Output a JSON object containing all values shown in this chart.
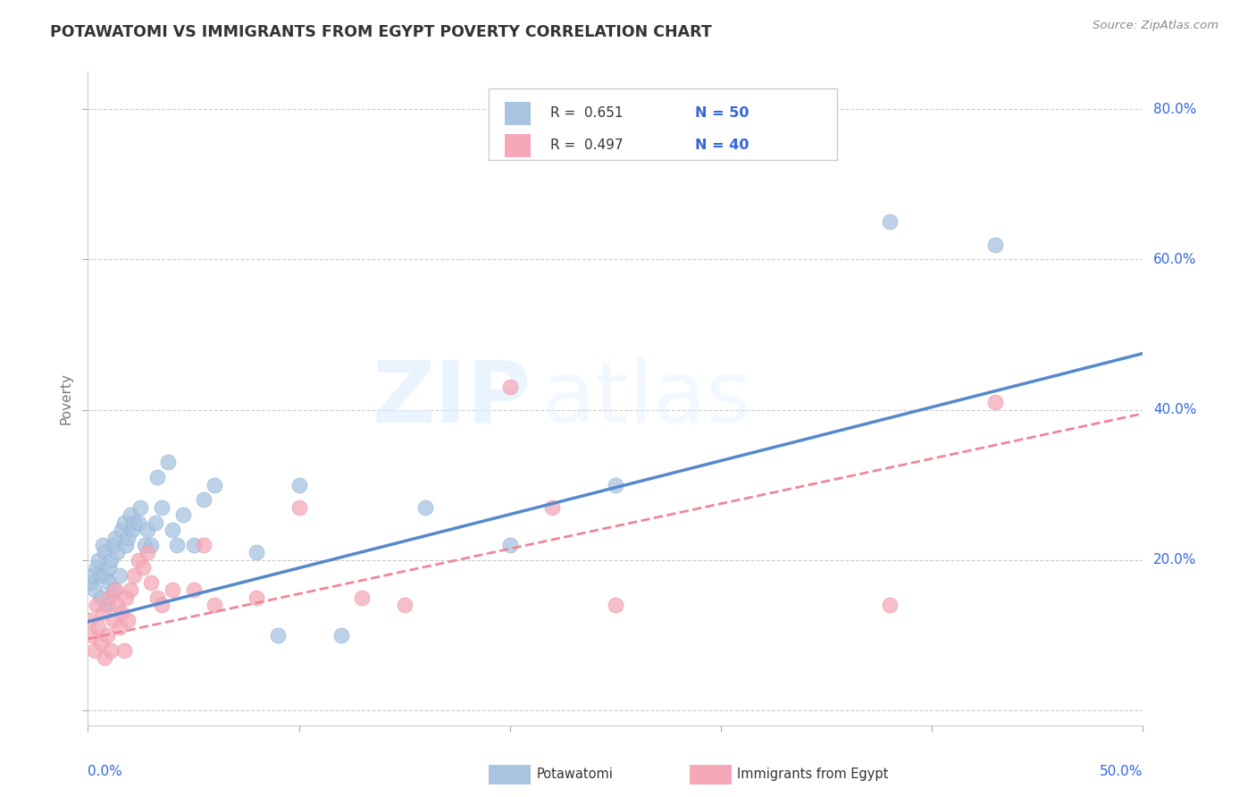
{
  "title": "POTAWATOMI VS IMMIGRANTS FROM EGYPT POVERTY CORRELATION CHART",
  "source": "Source: ZipAtlas.com",
  "ylabel": "Poverty",
  "watermark_zip": "ZIP",
  "watermark_atlas": "atlas",
  "xlim": [
    0.0,
    0.5
  ],
  "ylim": [
    -0.02,
    0.85
  ],
  "yticks": [
    0.0,
    0.2,
    0.4,
    0.6,
    0.8
  ],
  "ytick_labels": [
    "",
    "20.0%",
    "40.0%",
    "60.0%",
    "80.0%"
  ],
  "xtick_positions": [
    0.0,
    0.1,
    0.2,
    0.3,
    0.4,
    0.5
  ],
  "series1_label": "Potawatomi",
  "series2_label": "Immigrants from Egypt",
  "series1_R": 0.651,
  "series1_N": 50,
  "series2_R": 0.497,
  "series2_N": 40,
  "series1_color": "#A8C4E0",
  "series2_color": "#F4A8B8",
  "series1_line_color": "#5588CC",
  "series2_line_color": "#EE8899",
  "legend_color": "#3366DD",
  "title_color": "#333333",
  "grid_color": "#CCCCCC",
  "background_color": "#FFFFFF",
  "series1_x": [
    0.001,
    0.002,
    0.003,
    0.004,
    0.005,
    0.006,
    0.006,
    0.007,
    0.008,
    0.008,
    0.009,
    0.01,
    0.01,
    0.011,
    0.012,
    0.012,
    0.013,
    0.014,
    0.015,
    0.016,
    0.017,
    0.018,
    0.019,
    0.02,
    0.021,
    0.022,
    0.024,
    0.025,
    0.027,
    0.028,
    0.03,
    0.032,
    0.033,
    0.035,
    0.038,
    0.04,
    0.042,
    0.045,
    0.05,
    0.055,
    0.06,
    0.08,
    0.09,
    0.1,
    0.12,
    0.16,
    0.2,
    0.25,
    0.38,
    0.43
  ],
  "series1_y": [
    0.17,
    0.18,
    0.16,
    0.19,
    0.2,
    0.18,
    0.15,
    0.22,
    0.18,
    0.21,
    0.14,
    0.19,
    0.17,
    0.2,
    0.16,
    0.22,
    0.23,
    0.21,
    0.18,
    0.24,
    0.25,
    0.22,
    0.23,
    0.26,
    0.24,
    0.25,
    0.25,
    0.27,
    0.22,
    0.24,
    0.22,
    0.25,
    0.31,
    0.27,
    0.33,
    0.24,
    0.22,
    0.26,
    0.22,
    0.28,
    0.3,
    0.21,
    0.1,
    0.3,
    0.1,
    0.27,
    0.22,
    0.3,
    0.65,
    0.62
  ],
  "series2_x": [
    0.001,
    0.002,
    0.003,
    0.004,
    0.005,
    0.006,
    0.007,
    0.008,
    0.009,
    0.01,
    0.011,
    0.012,
    0.013,
    0.014,
    0.015,
    0.016,
    0.017,
    0.018,
    0.019,
    0.02,
    0.022,
    0.024,
    0.026,
    0.028,
    0.03,
    0.033,
    0.035,
    0.04,
    0.05,
    0.055,
    0.06,
    0.08,
    0.1,
    0.13,
    0.15,
    0.2,
    0.22,
    0.25,
    0.38,
    0.43
  ],
  "series2_y": [
    0.12,
    0.1,
    0.08,
    0.14,
    0.11,
    0.09,
    0.13,
    0.07,
    0.1,
    0.15,
    0.08,
    0.12,
    0.16,
    0.14,
    0.11,
    0.13,
    0.08,
    0.15,
    0.12,
    0.16,
    0.18,
    0.2,
    0.19,
    0.21,
    0.17,
    0.15,
    0.14,
    0.16,
    0.16,
    0.22,
    0.14,
    0.15,
    0.27,
    0.15,
    0.14,
    0.43,
    0.27,
    0.14,
    0.14,
    0.41
  ],
  "trend1_x0": 0.0,
  "trend1_y0": 0.118,
  "trend1_x1": 0.5,
  "trend1_y1": 0.475,
  "trend2_x0": 0.0,
  "trend2_y0": 0.095,
  "trend2_x1": 0.5,
  "trend2_y1": 0.395
}
